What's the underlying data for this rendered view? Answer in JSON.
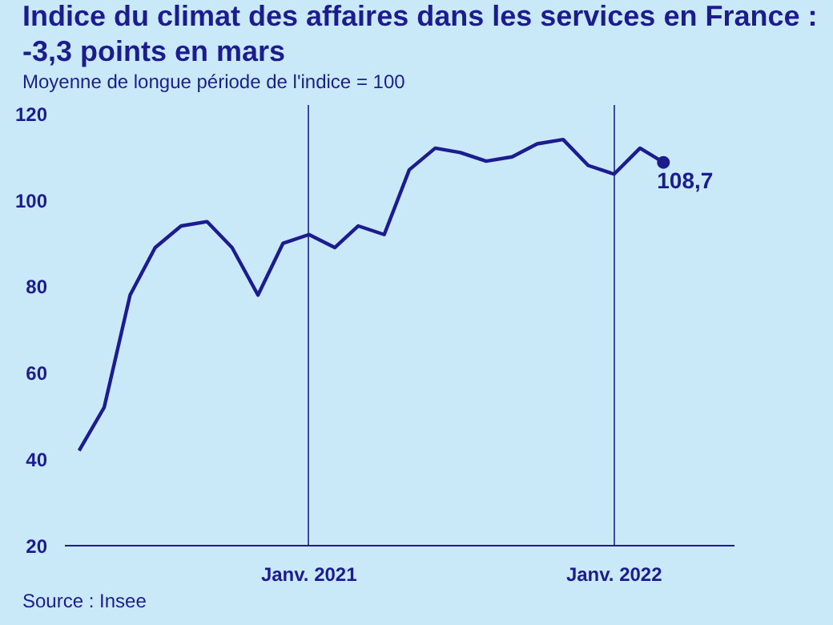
{
  "chart_data": {
    "type": "line",
    "title": "Indice du climat des affaires dans les services en France : -3,3 points en mars",
    "subtitle": "Moyenne de longue période de l'indice = 100",
    "annotations": [
      "Source : Insee"
    ],
    "x": [
      "2020-04",
      "2020-05",
      "2020-06",
      "2020-07",
      "2020-08",
      "2020-09",
      "2020-10",
      "2020-11",
      "2020-12",
      "2021-01",
      "2021-02",
      "2021-03",
      "2021-04",
      "2021-05",
      "2021-06",
      "2021-07",
      "2021-08",
      "2021-09",
      "2021-10",
      "2021-11",
      "2021-12",
      "2022-01",
      "2022-02",
      "2022-03"
    ],
    "series": [
      {
        "color": "#1c1c8f",
        "values": [
          42,
          52,
          78,
          89,
          94,
          95,
          89,
          78,
          90,
          92,
          89,
          94,
          92,
          107,
          112,
          111,
          109,
          110,
          113,
          114,
          108,
          106,
          112,
          108.7
        ],
        "value_labels": [
          null,
          null,
          null,
          null,
          null,
          null,
          null,
          null,
          null,
          null,
          null,
          null,
          null,
          null,
          null,
          null,
          null,
          null,
          null,
          null,
          null,
          null,
          null,
          "108,7"
        ]
      }
    ],
    "xlim": [
      "2020-03-15",
      "2022-05-25"
    ],
    "xticks": [
      {
        "value": "2021-01",
        "label": "Janv. 2021"
      },
      {
        "value": "2022-01",
        "label": "Janv. 2022"
      }
    ],
    "ylim": [
      20,
      122
    ],
    "yticks": [
      20,
      40,
      60,
      80,
      100,
      120
    ],
    "grid": "x",
    "line_style": "solid"
  }
}
